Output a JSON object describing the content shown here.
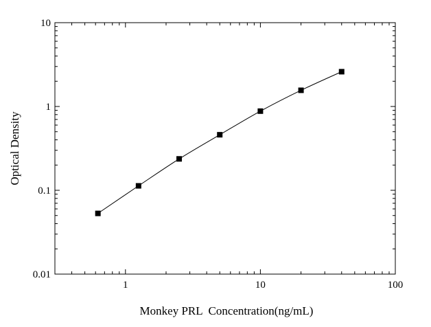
{
  "chart_data": {
    "type": "scatter",
    "title": "",
    "xlabel": "Monkey PRL  Concentration(ng/mL)",
    "ylabel": "Optical Density",
    "x_scale": "log",
    "y_scale": "log",
    "xlim": [
      0.3,
      100
    ],
    "ylim": [
      0.01,
      10
    ],
    "x_ticks": [
      1,
      10,
      100
    ],
    "x_tick_labels": [
      "1",
      "10",
      "100"
    ],
    "y_ticks": [
      0.01,
      0.1,
      1,
      10
    ],
    "y_tick_labels": [
      "0.01",
      "0.1",
      "1",
      "10"
    ],
    "grid": false,
    "legend": "none",
    "fit_curve": true,
    "marker": "square",
    "color": "#000000",
    "series": [
      {
        "x": [
          0.625,
          1.25,
          2.5,
          5,
          10,
          20,
          40
        ],
        "y": [
          0.053,
          0.113,
          0.237,
          0.46,
          0.88,
          1.56,
          2.6
        ]
      }
    ]
  }
}
